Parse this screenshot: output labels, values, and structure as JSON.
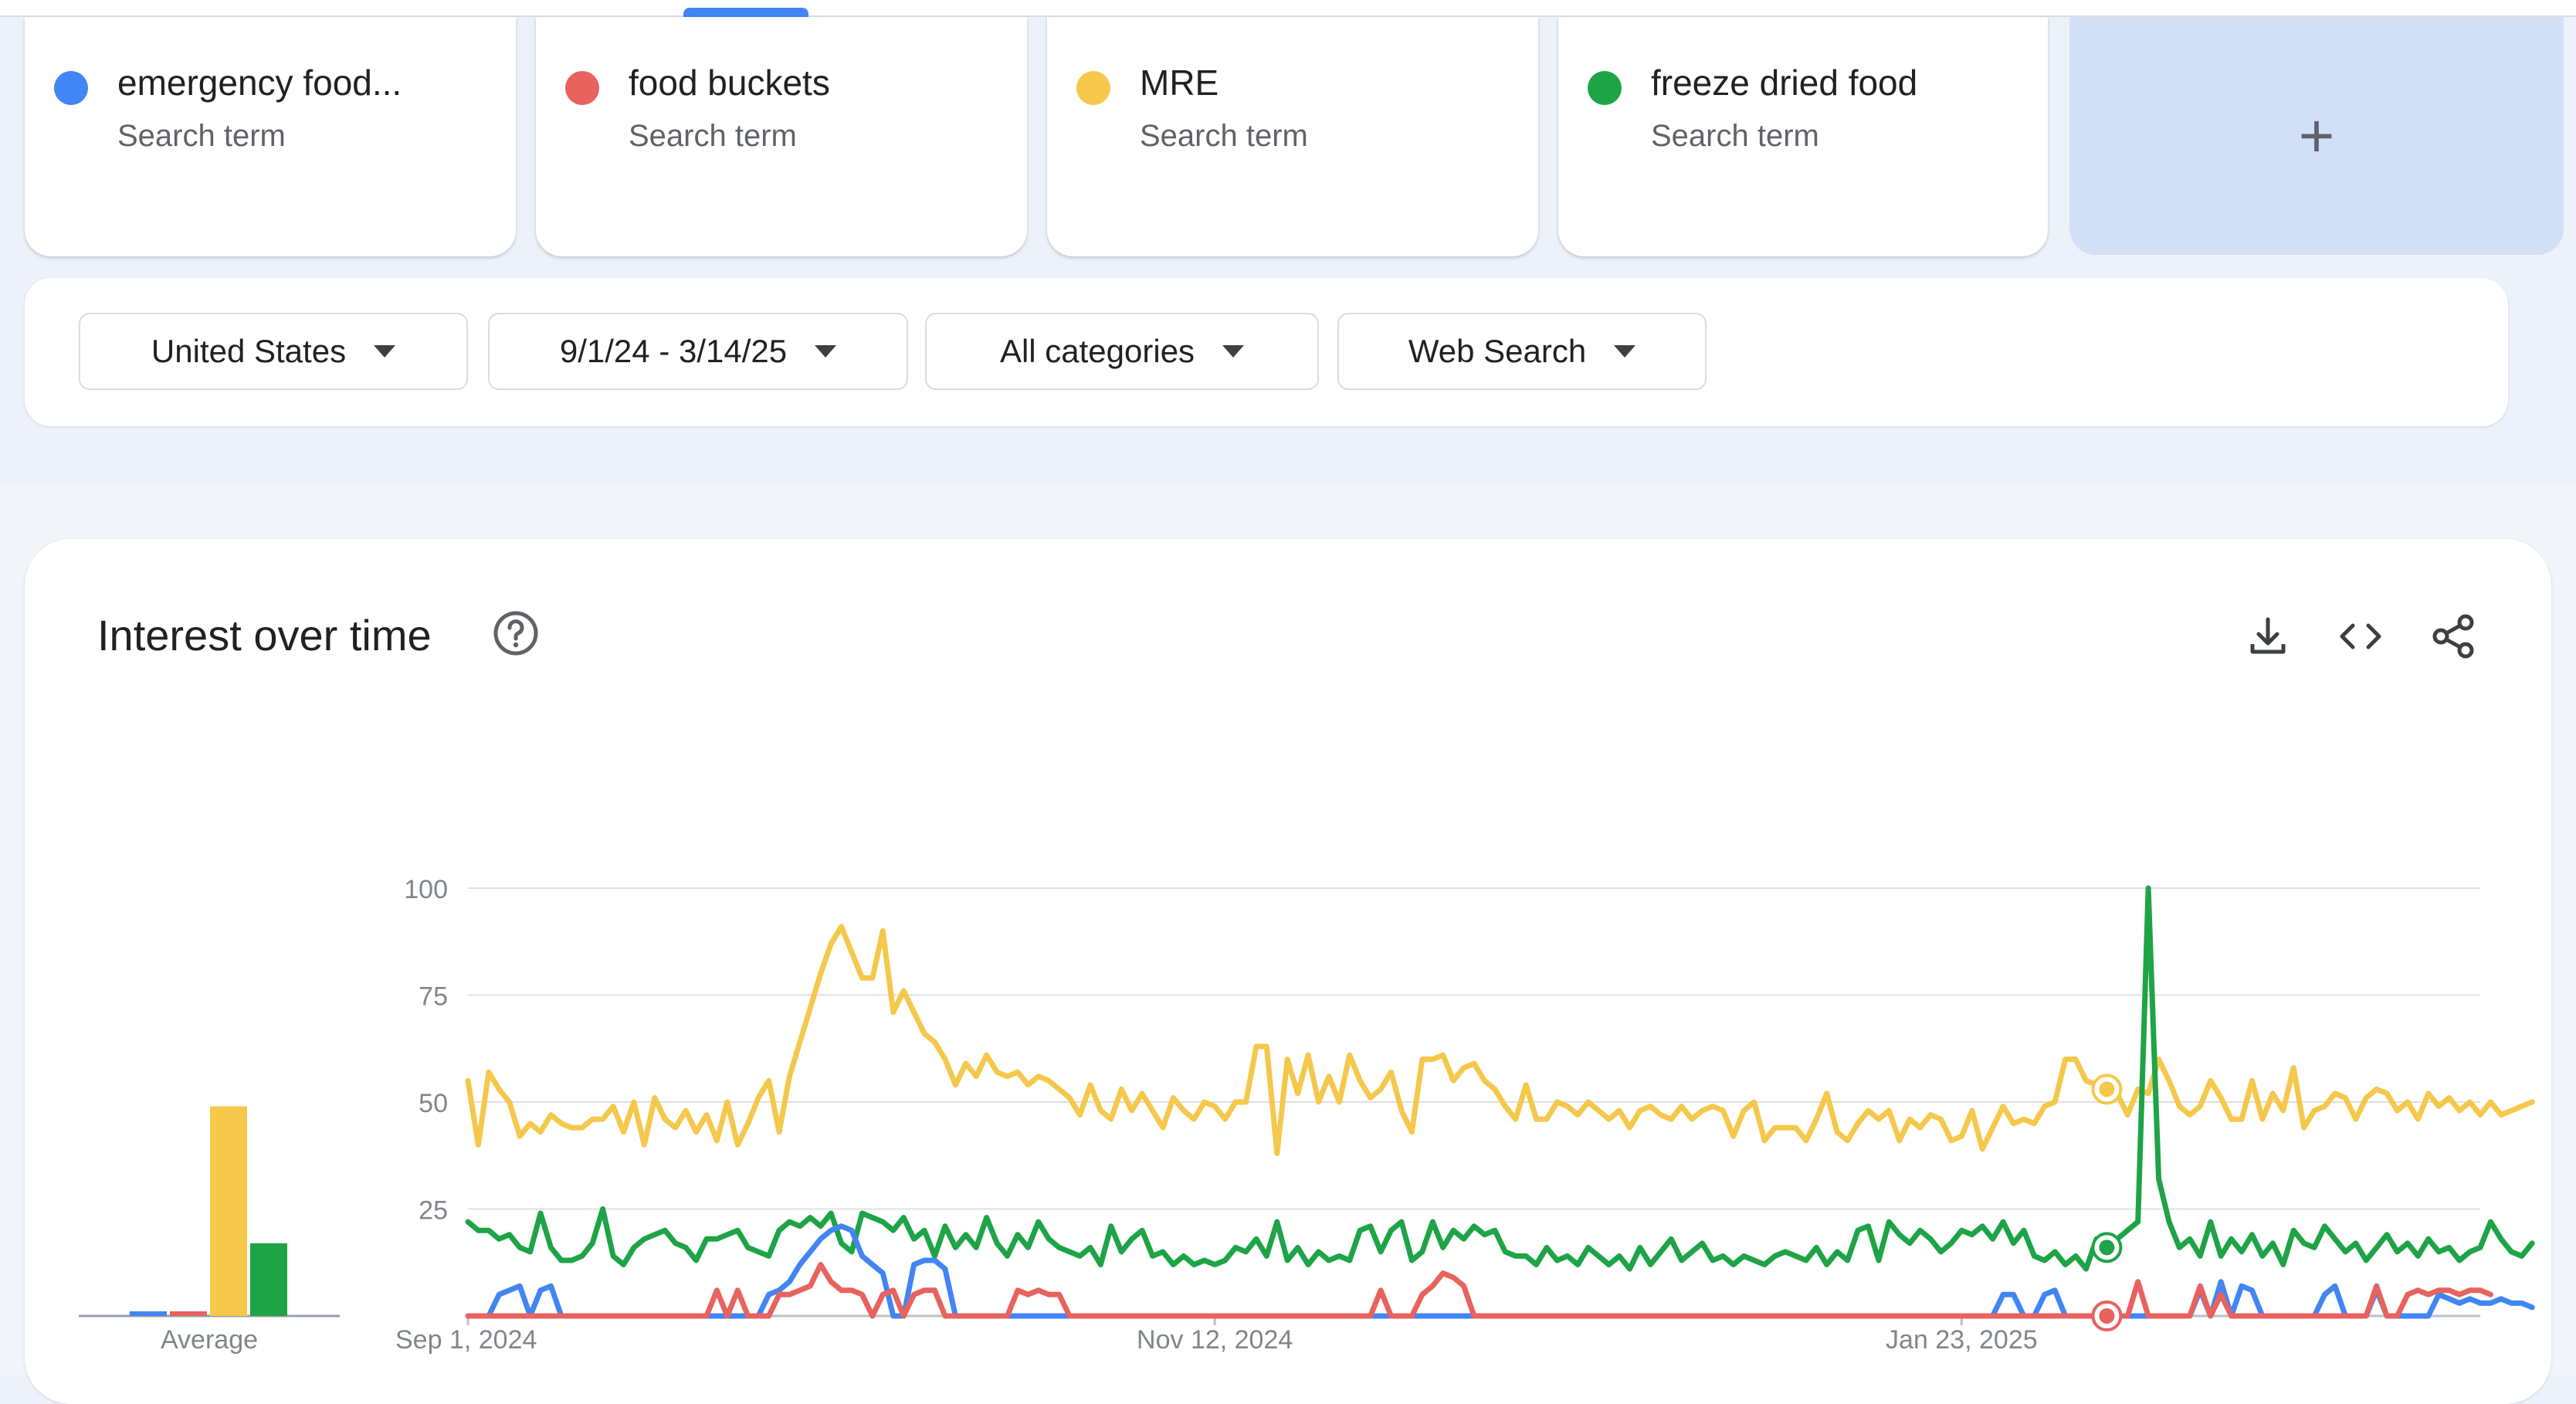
{
  "terms": [
    {
      "name": "emergency food...",
      "sub": "Search term",
      "color": "#4285f4"
    },
    {
      "name": "food buckets",
      "sub": "Search term",
      "color": "#e8625e"
    },
    {
      "name": "MRE",
      "sub": "Search term",
      "color": "#f5c84c"
    },
    {
      "name": "freeze dried food",
      "sub": "Search term",
      "color": "#1ea446"
    }
  ],
  "add_button": "+",
  "filters": {
    "region": "United States",
    "date_range": "9/1/24 - 3/14/25",
    "category": "All categories",
    "search_type": "Web Search"
  },
  "panel": {
    "title": "Interest over time",
    "icons": [
      "help-icon",
      "download-icon",
      "embed-icon",
      "share-icon"
    ]
  },
  "chart_data": {
    "type": "line",
    "x_labels": [
      "Sep 1, 2024",
      "Nov 12, 2024",
      "Jan 23, 2025"
    ],
    "x_label_days": [
      0,
      72,
      144
    ],
    "y_ticks": [
      25,
      50,
      75,
      100
    ],
    "ylim": [
      0,
      100
    ],
    "total_days": 194,
    "grid": true,
    "average_label": "Average",
    "averages": [
      {
        "term": "emergency food...",
        "color": "#4285f4",
        "value": 1
      },
      {
        "term": "food buckets",
        "color": "#e8625e",
        "value": 1
      },
      {
        "term": "MRE",
        "color": "#f5c84c",
        "value": 49
      },
      {
        "term": "freeze dried food",
        "color": "#1ea446",
        "value": 17
      }
    ],
    "series": [
      {
        "term": "MRE",
        "color": "#f5c84c",
        "values": [
          55,
          40,
          57,
          53,
          50,
          42,
          45,
          43,
          47,
          45,
          44,
          44,
          46,
          46,
          49,
          43,
          50,
          40,
          51,
          46,
          44,
          48,
          43,
          47,
          41,
          50,
          40,
          45,
          51,
          55,
          43,
          56,
          64,
          72,
          80,
          87,
          91,
          85,
          79,
          79,
          90,
          71,
          76,
          71,
          66,
          64,
          60,
          54,
          59,
          56,
          61,
          57,
          56,
          57,
          54,
          56,
          55,
          53,
          51,
          47,
          54,
          48,
          46,
          53,
          48,
          52,
          48,
          44,
          51,
          48,
          46,
          50,
          49,
          46,
          50,
          50,
          63,
          63,
          38,
          60,
          52,
          61,
          50,
          56,
          50,
          61,
          55,
          51,
          53,
          57,
          48,
          43,
          60,
          60,
          61,
          55,
          58,
          59,
          55,
          53,
          49,
          46,
          54,
          46,
          46,
          50,
          49,
          47,
          50,
          48,
          46,
          48,
          44,
          48,
          49,
          47,
          46,
          49,
          46,
          48,
          49,
          48,
          42,
          48,
          50,
          41,
          44,
          44,
          44,
          41,
          46,
          52,
          43,
          41,
          45,
          48,
          46,
          48,
          41,
          46,
          44,
          47,
          46,
          41,
          42,
          48,
          39,
          44,
          49,
          45,
          46,
          45,
          49,
          50,
          60,
          60,
          55,
          54,
          53,
          52,
          47,
          53,
          52,
          60,
          55,
          49,
          47,
          49,
          55,
          51,
          46,
          46,
          55,
          46,
          52,
          48,
          58,
          44,
          48,
          49,
          52,
          51,
          46,
          51,
          53,
          52,
          48,
          50,
          46,
          52,
          49,
          51,
          48,
          50,
          47,
          50,
          47,
          48,
          49,
          50
        ]
      },
      {
        "term": "freeze dried food",
        "color": "#1ea446",
        "values": [
          22,
          20,
          20,
          18,
          19,
          16,
          15,
          24,
          16,
          13,
          13,
          14,
          17,
          25,
          14,
          12,
          16,
          18,
          19,
          20,
          17,
          16,
          13,
          18,
          18,
          19,
          20,
          16,
          15,
          14,
          20,
          22,
          21,
          23,
          21,
          24,
          17,
          15,
          24,
          23,
          22,
          20,
          23,
          18,
          20,
          14,
          21,
          16,
          19,
          16,
          23,
          17,
          14,
          19,
          16,
          22,
          18,
          16,
          15,
          14,
          16,
          12,
          21,
          15,
          18,
          20,
          14,
          15,
          12,
          14,
          12,
          13,
          12,
          13,
          16,
          15,
          18,
          14,
          22,
          13,
          16,
          12,
          15,
          13,
          14,
          13,
          20,
          21,
          15,
          20,
          22,
          13,
          15,
          22,
          16,
          20,
          18,
          21,
          19,
          20,
          15,
          14,
          14,
          12,
          16,
          13,
          14,
          12,
          16,
          14,
          12,
          14,
          11,
          16,
          12,
          15,
          18,
          13,
          15,
          17,
          13,
          14,
          12,
          14,
          13,
          12,
          14,
          15,
          14,
          13,
          16,
          12,
          15,
          13,
          20,
          21,
          13,
          22,
          19,
          17,
          20,
          18,
          15,
          17,
          20,
          19,
          21,
          18,
          22,
          17,
          20,
          14,
          13,
          15,
          12,
          14,
          11,
          18,
          16,
          18,
          20,
          22,
          100,
          32,
          22,
          16,
          18,
          14,
          22,
          14,
          18,
          15,
          19,
          14,
          17,
          12,
          20,
          17,
          16,
          21,
          18,
          15,
          17,
          13,
          16,
          19,
          15,
          17,
          14,
          18,
          15,
          16,
          13,
          15,
          16,
          22,
          18,
          15,
          14,
          17
        ]
      },
      {
        "term": "emergency food...",
        "color": "#4285f4",
        "values": [
          0,
          0,
          0,
          5,
          6,
          7,
          0,
          6,
          7,
          0,
          0,
          0,
          0,
          0,
          0,
          0,
          0,
          0,
          0,
          0,
          0,
          0,
          0,
          0,
          0,
          0,
          0,
          0,
          0,
          5,
          6,
          8,
          12,
          15,
          18,
          20,
          21,
          20,
          14,
          12,
          10,
          0,
          0,
          12,
          13,
          13,
          11,
          0,
          0,
          0,
          0,
          0,
          0,
          0,
          0,
          0,
          0,
          0,
          0,
          0,
          0,
          0,
          0,
          0,
          0,
          0,
          0,
          0,
          0,
          0,
          0,
          0,
          0,
          0,
          0,
          0,
          0,
          0,
          0,
          0,
          0,
          0,
          0,
          0,
          0,
          0,
          0,
          0,
          0,
          0,
          0,
          0,
          0,
          0,
          0,
          0,
          0,
          0,
          0,
          0,
          0,
          0,
          0,
          0,
          0,
          0,
          0,
          0,
          0,
          0,
          0,
          0,
          0,
          0,
          0,
          0,
          0,
          0,
          0,
          0,
          0,
          0,
          0,
          0,
          0,
          0,
          0,
          0,
          0,
          0,
          0,
          0,
          0,
          0,
          0,
          0,
          0,
          0,
          0,
          0,
          0,
          0,
          0,
          0,
          0,
          0,
          0,
          0,
          5,
          5,
          0,
          0,
          5,
          6,
          0,
          0,
          0,
          0,
          0,
          0,
          0,
          0,
          0,
          0,
          0,
          0,
          0,
          6,
          0,
          8,
          0,
          7,
          6,
          0,
          0,
          0,
          0,
          0,
          0,
          5,
          7,
          0,
          0,
          0,
          6,
          0,
          0,
          0,
          0,
          0,
          5,
          4,
          3,
          4,
          3,
          3,
          4,
          3,
          3,
          2
        ]
      },
      {
        "term": "food buckets",
        "color": "#e8625e",
        "values": [
          0,
          0,
          0,
          0,
          0,
          0,
          0,
          0,
          0,
          0,
          0,
          0,
          0,
          0,
          0,
          0,
          0,
          0,
          0,
          0,
          0,
          0,
          0,
          0,
          6,
          0,
          6,
          0,
          0,
          0,
          5,
          5,
          6,
          7,
          12,
          8,
          6,
          6,
          5,
          0,
          5,
          6,
          0,
          5,
          6,
          6,
          0,
          0,
          0,
          0,
          0,
          0,
          0,
          6,
          5,
          6,
          5,
          5,
          0,
          0,
          0,
          0,
          0,
          0,
          0,
          0,
          0,
          0,
          0,
          0,
          0,
          0,
          0,
          0,
          0,
          0,
          0,
          0,
          0,
          0,
          0,
          0,
          0,
          0,
          0,
          0,
          0,
          0,
          6,
          0,
          0,
          0,
          5,
          7,
          10,
          9,
          7,
          0,
          0,
          0,
          0,
          0,
          0,
          0,
          0,
          0,
          0,
          0,
          0,
          0,
          0,
          0,
          0,
          0,
          0,
          0,
          0,
          0,
          0,
          0,
          0,
          0,
          0,
          0,
          0,
          0,
          0,
          0,
          0,
          0,
          0,
          0,
          0,
          0,
          0,
          0,
          0,
          0,
          0,
          0,
          0,
          0,
          0,
          0,
          0,
          0,
          0,
          0,
          0,
          0,
          0,
          0,
          0,
          0,
          0,
          0,
          0,
          0,
          0,
          0,
          0,
          8,
          0,
          0,
          0,
          0,
          0,
          7,
          0,
          5,
          0,
          0,
          0,
          0,
          0,
          0,
          0,
          0,
          0,
          0,
          0,
          0,
          0,
          0,
          7,
          0,
          0,
          5,
          6,
          5,
          6,
          6,
          5,
          6,
          6,
          5
        ]
      }
    ],
    "highlight_day": 158
  }
}
